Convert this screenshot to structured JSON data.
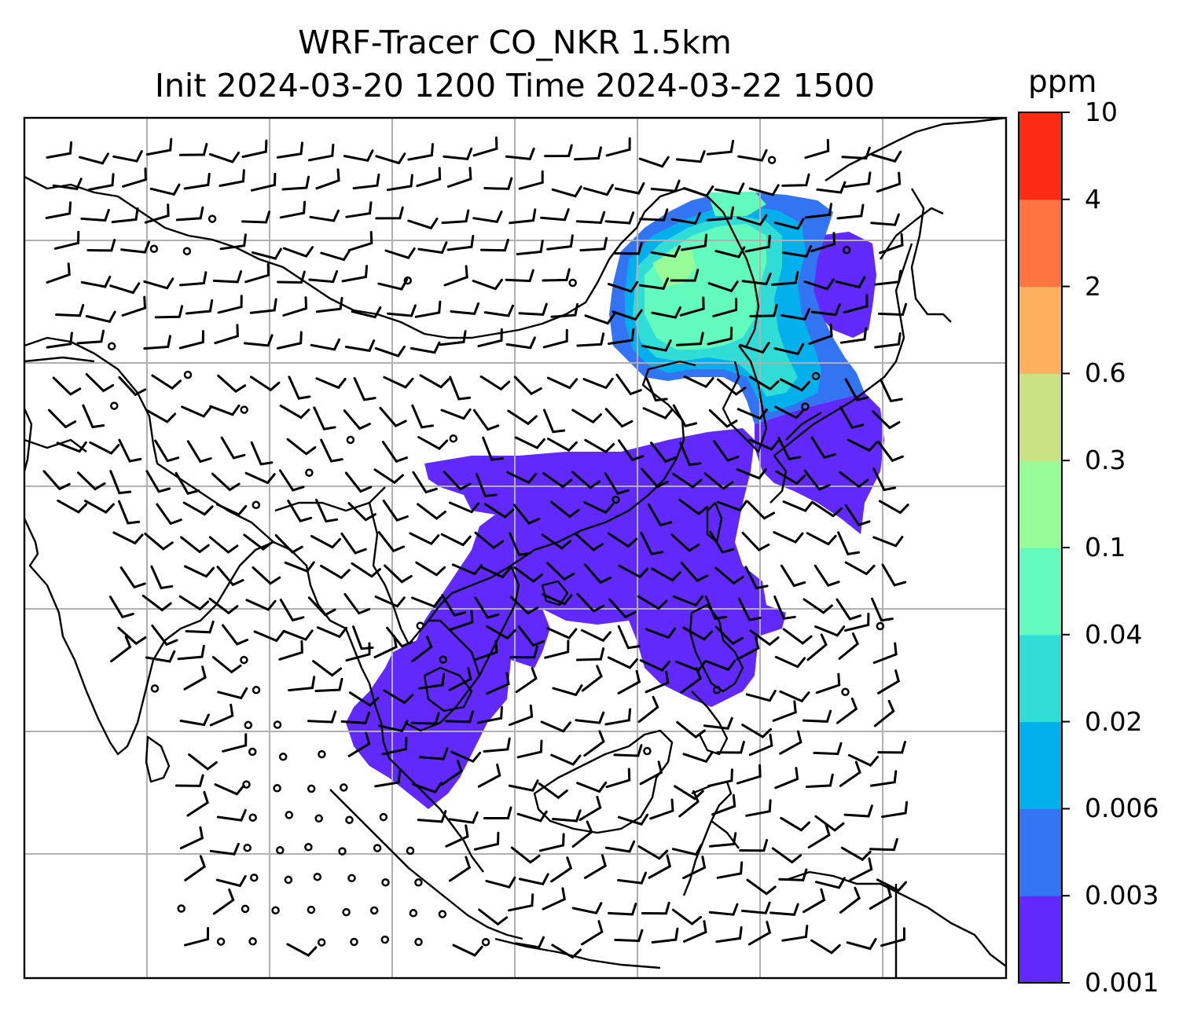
{
  "title": {
    "line1": "WRF-Tracer CO_NKR 1.5km",
    "line2": "Init 2024-03-20 1200 Time 2024-03-22 1500"
  },
  "colorbar": {
    "unit": "ppm",
    "levels": [
      "0.001",
      "0.003",
      "0.006",
      "0.02",
      "0.04",
      "0.1",
      "0.3",
      "0.6",
      "2",
      "4",
      "10"
    ],
    "colors": [
      "#6229fd",
      "#3274f1",
      "#03b0ec",
      "#2fddd6",
      "#63fbbd",
      "#97fb98",
      "#cbe284",
      "#feb05f",
      "#fe7540",
      "#fd2b14"
    ]
  },
  "map": {
    "type": "filled-contour map with wind barbs and coastlines",
    "plume_colors_present": [
      "#6229fd",
      "#3274f1",
      "#03b0ec",
      "#2fddd6",
      "#63fbbd",
      "#97fb98"
    ],
    "gridlines": true,
    "wind_barbs": true
  }
}
